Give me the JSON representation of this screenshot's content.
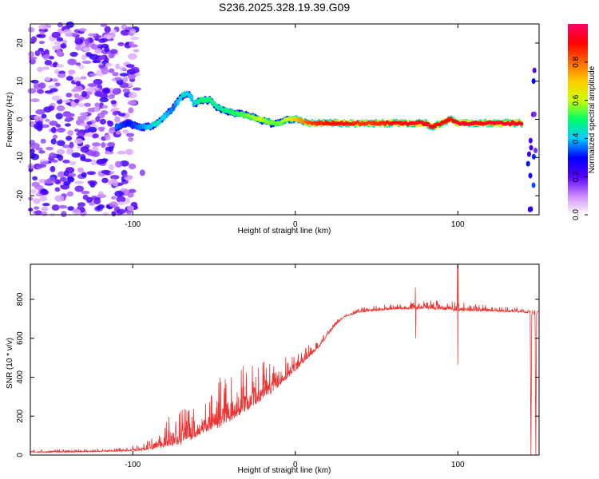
{
  "title": "S236.2025.328.19.39.G09",
  "chart_data": [
    {
      "type": "heatmap",
      "name": "spectrogram",
      "xlabel": "Height of straight line (km)",
      "ylabel": "Frequency (Hz)",
      "xlim": [
        -163,
        150
      ],
      "ylim": [
        -25,
        25
      ],
      "xticks": [
        -100,
        0,
        100
      ],
      "yticks": [
        -20,
        -10,
        0,
        10,
        20
      ],
      "colorbar": {
        "label": "Normalized spectral amplitude",
        "range": [
          0,
          1
        ],
        "ticks": [
          "0.0",
          "0.2",
          "0.4",
          "0.6",
          "0.8"
        ],
        "colors": [
          "#ffffff",
          "#cc88ff",
          "#5500ff",
          "#0000ff",
          "#00ccff",
          "#00ff66",
          "#ccff00",
          "#ffcc00",
          "#ff6600",
          "#ff0000",
          "#ff0066"
        ]
      },
      "signal_ridge": {
        "description": "Frequency of maximum amplitude vs height",
        "x": [
          -110,
          -103,
          -97,
          -90,
          -85,
          -80,
          -75,
          -70,
          -66,
          -62,
          -58,
          -52,
          -48,
          -40,
          -30,
          -22,
          -15,
          -10,
          -5,
          0,
          10,
          20,
          30,
          40,
          50,
          60,
          70,
          80,
          84,
          90,
          95,
          100,
          110,
          120,
          130,
          140
        ],
        "freq": [
          -2,
          -1,
          -2,
          -2,
          -1,
          1,
          3,
          6,
          7,
          4,
          5,
          5,
          3,
          2,
          1,
          0,
          -1,
          -1,
          0,
          0,
          -1,
          -1,
          -1,
          -1,
          -1,
          -1,
          -1,
          -1,
          -2,
          -1,
          0,
          -1,
          -1,
          -1,
          -1,
          -1
        ],
        "amplitude": [
          0.35,
          0.3,
          0.35,
          0.4,
          0.45,
          0.4,
          0.35,
          0.45,
          0.4,
          0.4,
          0.5,
          0.5,
          0.45,
          0.5,
          0.55,
          0.6,
          0.55,
          0.55,
          0.6,
          0.7,
          0.85,
          0.9,
          0.9,
          0.85,
          0.85,
          0.9,
          0.95,
          0.95,
          0.95,
          0.9,
          0.9,
          0.95,
          0.95,
          0.95,
          0.95,
          0.95
        ]
      },
      "noise_region": {
        "x_range": [
          -163,
          -98
        ],
        "freq_range": [
          -25,
          25
        ],
        "amplitude_range": [
          0.05,
          0.25
        ]
      }
    },
    {
      "type": "line",
      "name": "snr",
      "xlabel": "Height of straight line (km)",
      "ylabel": "SNR (10 * v/v)",
      "xlim": [
        -163,
        150
      ],
      "ylim": [
        0,
        980
      ],
      "xticks": [
        -100,
        0,
        100
      ],
      "yticks": [
        0,
        200,
        400,
        600,
        800
      ],
      "color": "#ee3333",
      "series": [
        {
          "name": "SNR envelope",
          "x": [
            -163,
            -140,
            -110,
            -95,
            -85,
            -75,
            -65,
            -55,
            -45,
            -35,
            -25,
            -15,
            -5,
            5,
            15,
            20,
            25,
            30,
            40,
            60,
            80,
            100,
            120,
            140,
            143
          ],
          "baseline": [
            15,
            15,
            20,
            25,
            40,
            60,
            90,
            130,
            170,
            220,
            270,
            330,
            400,
            480,
            560,
            620,
            670,
            710,
            735,
            750,
            755,
            745,
            740,
            735,
            730
          ],
          "spike": [
            30,
            30,
            35,
            60,
            120,
            240,
            260,
            300,
            420,
            470,
            510,
            520,
            540,
            560,
            600,
            650,
            690,
            720,
            760,
            780,
            800,
            790,
            770,
            760,
            760
          ]
        }
      ],
      "dropouts": [
        {
          "x": 142,
          "min": 0
        },
        {
          "x": 145,
          "min": 0
        },
        {
          "x": 148,
          "min": 0
        }
      ],
      "notable_points": [
        {
          "x": 74,
          "max": 860,
          "min": 600
        },
        {
          "x": 100,
          "max": 975,
          "min": 465
        }
      ]
    }
  ]
}
